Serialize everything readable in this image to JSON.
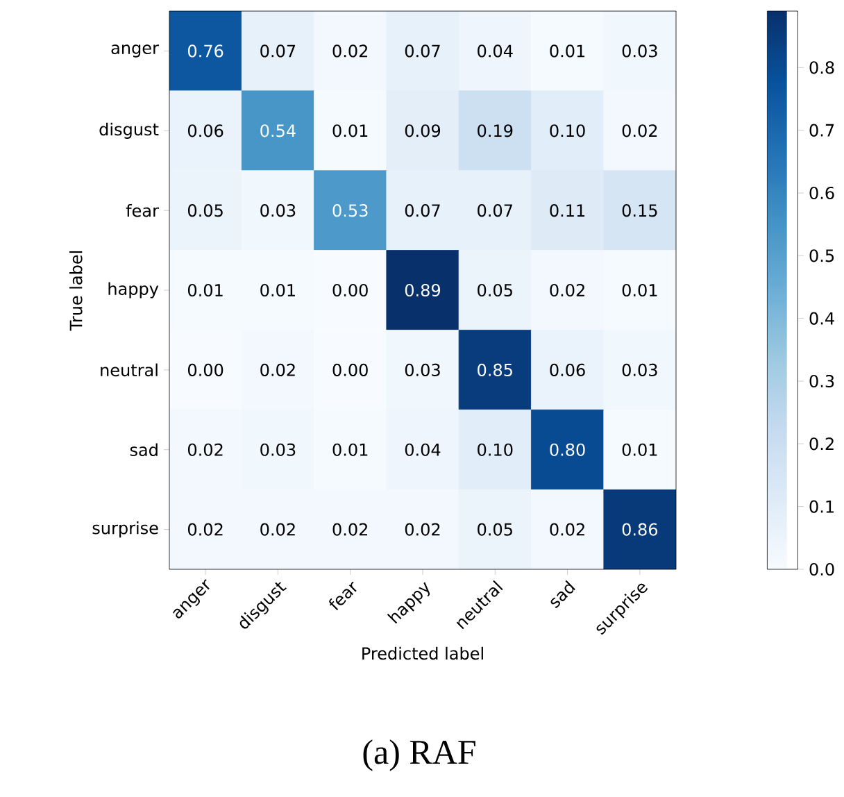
{
  "chart_data": {
    "type": "heatmap",
    "xlabel": "Predicted label",
    "ylabel": "True label",
    "categories": [
      "anger",
      "disgust",
      "fear",
      "happy",
      "neutral",
      "sad",
      "surprise"
    ],
    "y_categories": [
      "anger",
      "disgust",
      "fear",
      "happy",
      "neutral",
      "sad",
      "surprise"
    ],
    "cells": [
      [
        0.76,
        0.07,
        0.02,
        0.07,
        0.04,
        0.01,
        0.03
      ],
      [
        0.06,
        0.54,
        0.01,
        0.09,
        0.19,
        0.1,
        0.02
      ],
      [
        0.05,
        0.03,
        0.53,
        0.07,
        0.07,
        0.11,
        0.15
      ],
      [
        0.01,
        0.01,
        0.0,
        0.89,
        0.05,
        0.02,
        0.01
      ],
      [
        0.0,
        0.02,
        0.0,
        0.03,
        0.85,
        0.06,
        0.03
      ],
      [
        0.02,
        0.03,
        0.01,
        0.04,
        0.1,
        0.8,
        0.01
      ],
      [
        0.02,
        0.02,
        0.02,
        0.02,
        0.05,
        0.02,
        0.86
      ]
    ],
    "cell_labels": [
      [
        "0.76",
        "0.07",
        "0.02",
        "0.07",
        "0.04",
        "0.01",
        "0.03"
      ],
      [
        "0.06",
        "0.54",
        "0.01",
        "0.09",
        "0.19",
        "0.10",
        "0.02"
      ],
      [
        "0.05",
        "0.03",
        "0.53",
        "0.07",
        "0.07",
        "0.11",
        "0.15"
      ],
      [
        "0.01",
        "0.01",
        "0.00",
        "0.89",
        "0.05",
        "0.02",
        "0.01"
      ],
      [
        "0.00",
        "0.02",
        "0.00",
        "0.03",
        "0.85",
        "0.06",
        "0.03"
      ],
      [
        "0.02",
        "0.03",
        "0.01",
        "0.04",
        "0.10",
        "0.80",
        "0.01"
      ],
      [
        "0.02",
        "0.02",
        "0.02",
        "0.02",
        "0.05",
        "0.02",
        "0.86"
      ]
    ],
    "clim": [
      0,
      0.89
    ],
    "cticks": [
      {
        "value": 0,
        "label": "0.0"
      },
      {
        "value": 0.1,
        "label": "0.1"
      },
      {
        "value": 0.2,
        "label": "0.2"
      },
      {
        "value": 0.3,
        "label": "0.3"
      },
      {
        "value": 0.4,
        "label": "0.4"
      },
      {
        "value": 0.5,
        "label": "0.5"
      },
      {
        "value": 0.6,
        "label": "0.6"
      },
      {
        "value": 0.7,
        "label": "0.7"
      },
      {
        "value": 0.8,
        "label": "0.8"
      }
    ],
    "annotations": [
      "(a) RAF"
    ]
  }
}
